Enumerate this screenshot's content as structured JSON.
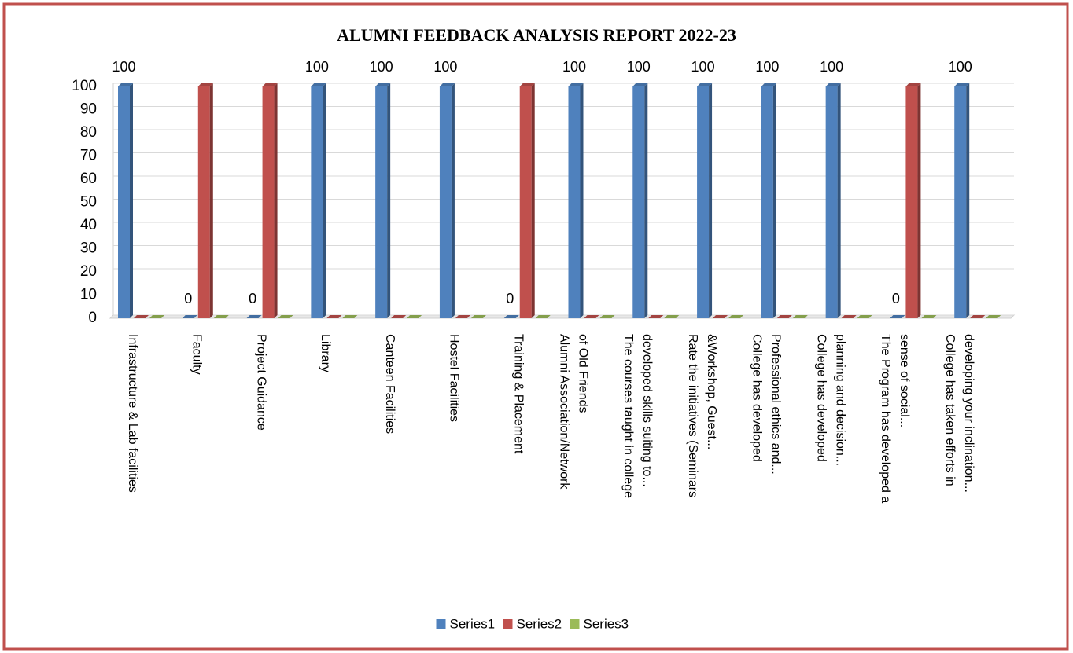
{
  "chart_data": {
    "type": "bar3d",
    "title": "ALUMNI FEEDBACK ANALYSIS REPORT 2022-23",
    "categories": [
      [
        "Infrastructure & Lab facilities"
      ],
      [
        "Faculty"
      ],
      [
        "Project Guidance"
      ],
      [
        "Library"
      ],
      [
        "Canteen Facilities"
      ],
      [
        "Hostel Facilities"
      ],
      [
        "Training & Placement"
      ],
      [
        "Alumni Association/Network",
        "of Old Friends"
      ],
      [
        "The courses taught in college",
        "developed skills suiting to..."
      ],
      [
        "Rate the initiatives (Seminars",
        "&Workshop, Guest..."
      ],
      [
        "College has developed",
        "Professional ethics and..."
      ],
      [
        "College has developed",
        "planning and decision..."
      ],
      [
        "The Program has developed a",
        "sense of social..."
      ],
      [
        "College has taken efforts in",
        "developing your inclination..."
      ]
    ],
    "series": [
      {
        "name": "Series1",
        "color": "#4f81bd",
        "show_data_labels": true,
        "values": [
          100,
          0,
          0,
          100,
          100,
          100,
          0,
          100,
          100,
          100,
          100,
          100,
          0,
          100
        ]
      },
      {
        "name": "Series2",
        "color": "#c0504d",
        "show_data_labels": false,
        "values": [
          0,
          100,
          100,
          0,
          0,
          0,
          100,
          0,
          0,
          0,
          0,
          0,
          100,
          0
        ]
      },
      {
        "name": "Series3",
        "color": "#9bbb59",
        "show_data_labels": false,
        "values": [
          0,
          0,
          0,
          0,
          0,
          0,
          0,
          0,
          0,
          0,
          0,
          0,
          0,
          0
        ]
      }
    ],
    "ylim": [
      0,
      100
    ],
    "yticks": [
      0,
      10,
      20,
      30,
      40,
      50,
      60,
      70,
      80,
      90,
      100
    ],
    "grid": true,
    "legend": "bottom"
  }
}
